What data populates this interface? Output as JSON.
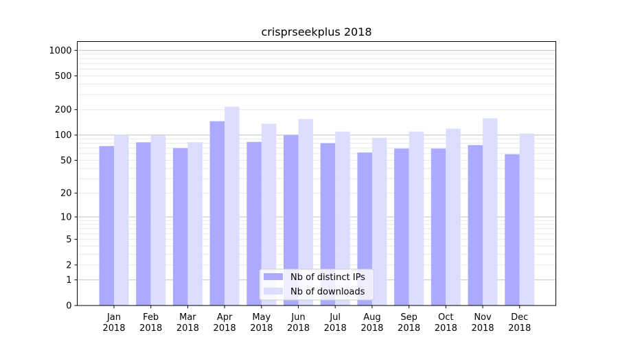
{
  "chart_data": {
    "type": "bar",
    "title": "crisprseekplus 2018",
    "xlabel": "",
    "ylabel": "",
    "yscale": "log(1+y)",
    "ylim": [
      0,
      1270
    ],
    "yticks": [
      0,
      1,
      2,
      5,
      10,
      20,
      50,
      100,
      200,
      500,
      1000
    ],
    "grid": true,
    "legend_position": "lower-center",
    "categories": [
      "Jan\n2018",
      "Feb\n2018",
      "Mar\n2018",
      "Apr\n2018",
      "May\n2018",
      "Jun\n2018",
      "Jul\n2018",
      "Aug\n2018",
      "Sep\n2018",
      "Oct\n2018",
      "Nov\n2018",
      "Dec\n2018"
    ],
    "series": [
      {
        "name": "Nb of distinct IPs",
        "color": "#aaaaff",
        "values": [
          74,
          82,
          70,
          146,
          83,
          100,
          80,
          62,
          69,
          69,
          76,
          59
        ]
      },
      {
        "name": "Nb of downloads",
        "color": "#ddddff",
        "values": [
          100,
          99,
          82,
          217,
          136,
          155,
          110,
          93,
          110,
          119,
          158,
          104
        ]
      }
    ]
  }
}
